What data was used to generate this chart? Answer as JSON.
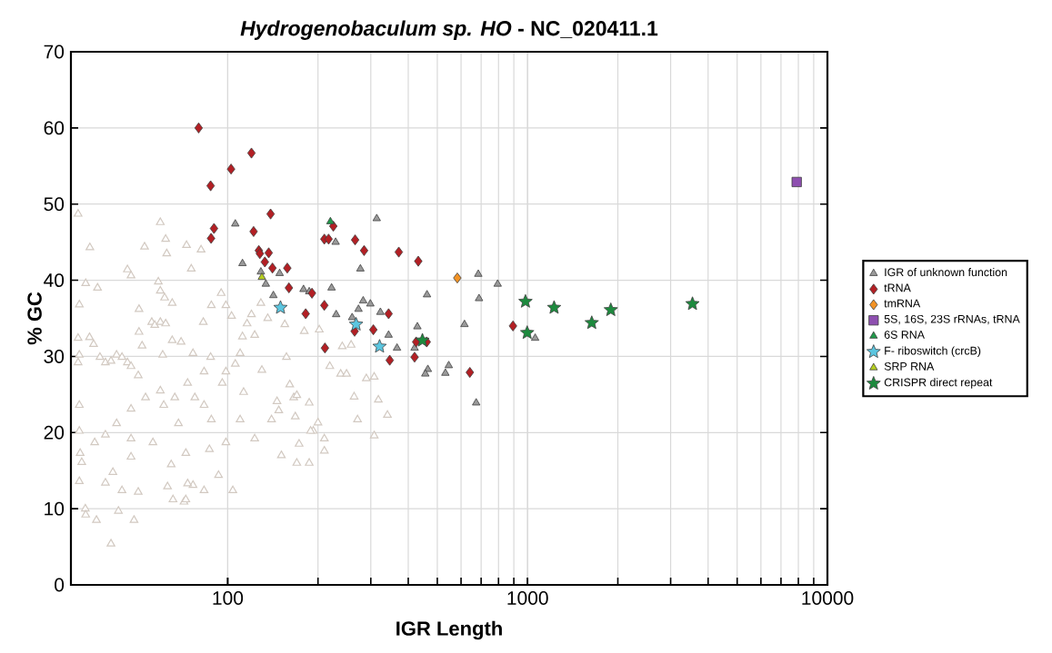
{
  "chart_data": {
    "type": "scatter",
    "title": "*Hydrogenobaculum sp. HO* - NC_020411.1",
    "xlabel": "IGR Length",
    "ylabel": "% GC",
    "log": "x",
    "xlim": [
      30,
      10000
    ],
    "xticks": [
      100,
      1000,
      10000
    ],
    "ylim": [
      0,
      70
    ],
    "yticks": [
      0,
      10,
      20,
      30,
      40,
      50,
      60,
      70
    ],
    "grid": true,
    "legend": "right",
    "series": [
      {
        "color": "#d2c9c1",
        "marker": "triangle",
        "x": [
          31.7,
          34.7,
          33.6,
          36.8,
          32,
          31.7,
          34.6,
          35.7,
          32,
          31.7,
          37.5,
          39.1,
          40.8,
          42.6,
          44.4,
          46.3,
          47.6,
          50.3,
          52.8,
          46.3,
          47.6,
          50.6,
          50.6,
          51.8,
          55.8,
          57.1,
          59.6,
          62.1,
          58.7,
          59.6,
          61.6,
          60.7,
          65.3,
          69.9,
          59.6,
          62.1,
          62.6,
          65.3,
          72.9,
          75.6,
          81.5,
          82.9,
          88.2,
          87.7,
          95.1,
          98.6,
          103,
          112,
          116,
          120,
          129,
          136,
          123,
          110,
          98.6,
          83.4,
          73.5,
          66.6,
          59.6,
          53.2,
          47.6,
          42.6,
          39.1,
          36,
          32.2,
          39.1,
          44.4,
          50.3,
          63,
          71.5,
          76.6,
          83.4,
          93.2,
          104,
          123,
          146,
          166,
          193,
          173,
          140,
          110,
          98.6,
          86.9,
          72.5,
          64.8,
          56.3,
          47.6,
          41.4,
          33.5,
          36.5,
          40.8,
          43.2,
          48.7,
          65.7,
          72.5,
          73.5,
          33.6,
          32,
          32,
          32.6,
          32,
          106,
          95.9,
          83.4,
          76.6,
          47.6,
          61.2,
          68.5,
          88.2,
          77.7,
          113,
          148,
          168,
          130,
          157,
          155,
          180,
          202,
          241,
          258,
          219,
          238,
          249,
          290,
          308,
          264,
          318,
          341,
          271,
          308,
          210,
          210,
          187,
          170,
          151,
          200,
          189,
          187,
          170,
          161
        ],
        "values": [
          48.7,
          44.3,
          39.6,
          39,
          36.8,
          32.4,
          32.5,
          31.6,
          30.2,
          29.2,
          29.9,
          29.2,
          29.4,
          30.2,
          29.9,
          29.2,
          28.7,
          27.5,
          44.4,
          41.4,
          40.6,
          36.2,
          33.2,
          31.4,
          34.5,
          34.1,
          34.5,
          34.3,
          39.8,
          38.6,
          37.7,
          30.2,
          32.1,
          31.9,
          47.6,
          45.4,
          43.5,
          37,
          44.6,
          41.5,
          44,
          34.5,
          36.7,
          29.9,
          38.3,
          36.7,
          35.3,
          32.6,
          34.3,
          35.5,
          37,
          35,
          32.8,
          30.4,
          28,
          23.6,
          26.5,
          24.6,
          25.5,
          24.6,
          23.1,
          21.2,
          19.7,
          18.7,
          17.3,
          13.4,
          12.4,
          12.2,
          12.9,
          10.9,
          13.1,
          12.4,
          14.4,
          12.4,
          19.2,
          24.1,
          24.6,
          20.2,
          18.5,
          21.7,
          21.7,
          18.7,
          17.8,
          17.3,
          15.8,
          18.7,
          16.8,
          14.8,
          10,
          8.5,
          5.4,
          9.7,
          8.5,
          11.2,
          11.2,
          13.3,
          9.2,
          13.6,
          20.2,
          16.1,
          23.6,
          29,
          26.5,
          28,
          30.4,
          19.2,
          23.6,
          21.2,
          21.7,
          24.6,
          25.3,
          22.9,
          22.1,
          28.2,
          29.9,
          34.2,
          33.3,
          33.5,
          31.3,
          31.5,
          28.7,
          27.7,
          27.7,
          27.1,
          27.3,
          24.7,
          24.3,
          22.3,
          21.7,
          19.6,
          19.2,
          17.6,
          16,
          16,
          17,
          21.3,
          20.2,
          23.9,
          24.9,
          26.3
        ]
      },
      {
        "name": "IGR of unknown function",
        "color": "#9a9a9a",
        "marker": "triangle",
        "x": [
          314,
          229,
          277,
          685,
          795,
          187,
          222,
          462,
          689,
          283,
          299,
          273,
          323,
          230,
          260,
          616,
          429,
          344,
          367,
          420,
          1060,
          465,
          546,
          456,
          532,
          674,
          106,
          112,
          134,
          142,
          149,
          179,
          129
        ],
        "values": [
          48.1,
          45.0,
          41.5,
          40.8,
          39.5,
          38.5,
          39.0,
          38.1,
          37.6,
          37.3,
          36.9,
          36.2,
          35.8,
          35.5,
          35.1,
          34.2,
          33.9,
          32.8,
          31.1,
          31.1,
          32.4,
          28.3,
          28.8,
          27.7,
          27.8,
          23.9,
          47.4,
          42.2,
          39.5,
          38.0,
          40.9,
          38.8,
          41.1
        ]
      },
      {
        "name": "tRNA",
        "color": "#b31f24",
        "marker": "diamond",
        "x": [
          80,
          87.7,
          90,
          88,
          102.6,
          120,
          139,
          122,
          127,
          128,
          137,
          133,
          141,
          158,
          160,
          191,
          182,
          210,
          211,
          210,
          217,
          225,
          266,
          285,
          372,
          432,
          265,
          306,
          344,
          347,
          420,
          425,
          461,
          642,
          894
        ],
        "values": [
          60,
          52.4,
          46.8,
          45.5,
          54.6,
          56.7,
          48.7,
          46.4,
          43.9,
          43.5,
          43.6,
          42.4,
          41.6,
          41.6,
          39,
          38.3,
          35.6,
          36.7,
          31.1,
          45.4,
          45.4,
          47.1,
          45.3,
          43.9,
          43.7,
          42.5,
          33.3,
          33.5,
          35.6,
          29.5,
          29.9,
          31.9,
          31.9,
          27.9,
          34.0
        ]
      },
      {
        "name": "tmRNA",
        "color": "#f39325",
        "marker": "diamond",
        "x": [
          583
        ],
        "values": [
          40.3
        ]
      },
      {
        "name": "5S, 16S, 23S rRNAs, tRNA",
        "color": "#8e4fb0",
        "marker": "square",
        "x": [
          7900
        ],
        "values": [
          52.9
        ]
      },
      {
        "name": "6S RNA",
        "color": "#1f9a4a",
        "marker": "triangle",
        "x": [
          220
        ],
        "values": [
          47.7
        ]
      },
      {
        "name": "F- riboswitch (crcB)",
        "color": "#5bc6e0",
        "marker": "star",
        "x": [
          150,
          268,
          321
        ],
        "values": [
          36.4,
          34.2,
          31.3
        ]
      },
      {
        "name": "SRP RNA",
        "color": "#b6cf1f",
        "marker": "triangle",
        "x": [
          130
        ],
        "values": [
          40.4
        ]
      },
      {
        "name": "CRISPR direct repeat",
        "color": "#1d8a3e",
        "marker": "star",
        "x": [
          446,
          984,
          997,
          1226,
          1637,
          1895,
          3548
        ],
        "values": [
          32.1,
          37.2,
          33.1,
          36.4,
          34.4,
          36.1,
          36.9
        ]
      }
    ]
  }
}
